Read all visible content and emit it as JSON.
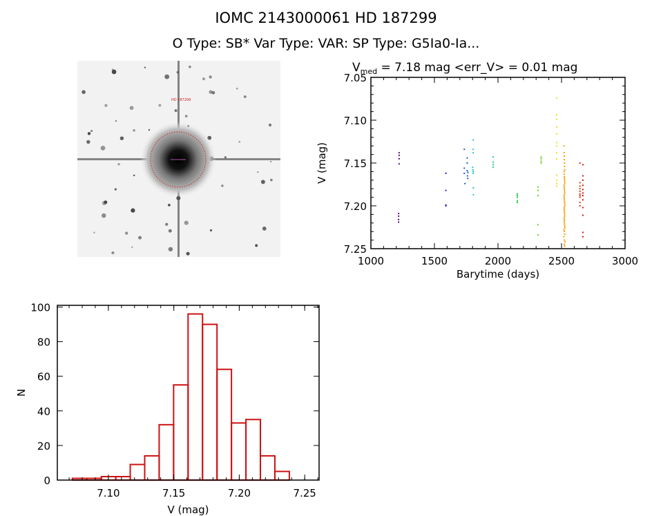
{
  "header": {
    "title": "IOMC 2143000061    HD 187299",
    "subtitle": "O Type: SB*  Var Type: VAR:  SP Type: G5Ia0-Ia..."
  },
  "image_panel": {
    "target_label": "HD 187299",
    "marker_color": "#cc2222"
  },
  "chart_data": [
    {
      "type": "scatter",
      "title_prefix": "V",
      "title_sub": "med",
      "title_rest": " = 7.18 mag <err_V> = 0.01 mag",
      "xlabel": "Barytime (days)",
      "ylabel": "V (mag)",
      "xlim": [
        1000,
        3000
      ],
      "ylim": [
        7.25,
        7.05
      ],
      "y_inverted": true,
      "xticks": [
        "1000",
        "1500",
        "2000",
        "2500",
        "3000"
      ],
      "yticks": [
        "7.05",
        "7.10",
        "7.15",
        "7.20",
        "7.25"
      ],
      "series": [
        {
          "color": "#4b0a7a",
          "x": [
            1222,
            1222,
            1222,
            1222,
            1218,
            1218,
            1218,
            1218
          ],
          "y": [
            7.138,
            7.141,
            7.145,
            7.151,
            7.209,
            7.212,
            7.216,
            7.219
          ]
        },
        {
          "color": "#2a1ab0",
          "x": [
            1590,
            1590,
            1590,
            1590
          ],
          "y": [
            7.162,
            7.182,
            7.199,
            7.2
          ]
        },
        {
          "color": "#1a5ac8",
          "x": [
            1735,
            1735,
            1735,
            1758,
            1758,
            1758,
            1760,
            1762,
            1763,
            1740
          ],
          "y": [
            7.134,
            7.156,
            7.162,
            7.144,
            7.15,
            7.159,
            7.165,
            7.168,
            7.161,
            7.174
          ]
        },
        {
          "color": "#1ac8d0",
          "x": [
            1805,
            1805,
            1805,
            1800,
            1802,
            1805,
            1805,
            1806,
            1806
          ],
          "y": [
            7.123,
            7.134,
            7.138,
            7.155,
            7.158,
            7.16,
            7.162,
            7.179,
            7.187
          ]
        },
        {
          "color": "#20c8a0",
          "x": [
            1962,
            1962,
            1962,
            1962
          ],
          "y": [
            7.143,
            7.149,
            7.152,
            7.155
          ]
        },
        {
          "color": "#22cc44",
          "x": [
            2152,
            2152,
            2152,
            2152,
            2152
          ],
          "y": [
            7.186,
            7.188,
            7.19,
            7.194,
            7.196
          ]
        },
        {
          "color": "#66d622",
          "x": [
            2315,
            2315,
            2315,
            2315,
            2315,
            2340,
            2340,
            2340,
            2340
          ],
          "y": [
            7.178,
            7.182,
            7.188,
            7.222,
            7.234,
            7.143,
            7.145,
            7.148,
            7.15
          ]
        },
        {
          "color": "#f0e020",
          "x": [
            2462,
            2462,
            2462,
            2462,
            2462,
            2462,
            2462,
            2462,
            2462,
            2462,
            2462,
            2462,
            2462
          ],
          "y": [
            7.074,
            7.094,
            7.099,
            7.108,
            7.116,
            7.126,
            7.13,
            7.138,
            7.145,
            7.164,
            7.17,
            7.174,
            7.177
          ]
        },
        {
          "color": "#f5a000",
          "x": [
            2520,
            2520,
            2521,
            2522,
            2523,
            2524,
            2525,
            2520,
            2521,
            2522,
            2523,
            2524,
            2525,
            2526,
            2520,
            2521,
            2522,
            2523,
            2524,
            2525,
            2520,
            2521,
            2522,
            2523,
            2524,
            2525,
            2526,
            2520,
            2521,
            2522,
            2523,
            2524,
            2525,
            2520,
            2521,
            2522,
            2523,
            2524,
            2525,
            2526,
            2518,
            2522,
            2526,
            2519,
            2523,
            2527,
            2521,
            2524
          ],
          "y": [
            7.13,
            7.138,
            7.142,
            7.146,
            7.15,
            7.154,
            7.158,
            7.16,
            7.163,
            7.166,
            7.168,
            7.17,
            7.172,
            7.174,
            7.176,
            7.178,
            7.18,
            7.182,
            7.184,
            7.186,
            7.188,
            7.19,
            7.192,
            7.194,
            7.196,
            7.198,
            7.2,
            7.202,
            7.204,
            7.206,
            7.208,
            7.21,
            7.212,
            7.214,
            7.216,
            7.218,
            7.22,
            7.222,
            7.224,
            7.226,
            7.228,
            7.23,
            7.233,
            7.236,
            7.24,
            7.242,
            7.245,
            7.247
          ]
        },
        {
          "color": "#d83c10",
          "x": [
            2645,
            2645,
            2645,
            2645,
            2645,
            2645,
            2645,
            2645,
            2645,
            2645
          ],
          "y": [
            7.15,
            7.173,
            7.177,
            7.18,
            7.183,
            7.186,
            7.188,
            7.19,
            7.196,
            7.2
          ]
        },
        {
          "color": "#d01010",
          "x": [
            2668,
            2668,
            2668,
            2668,
            2668,
            2668,
            2668,
            2668,
            2668,
            2668,
            2668,
            2668
          ],
          "y": [
            7.152,
            7.165,
            7.17,
            7.176,
            7.181,
            7.185,
            7.188,
            7.193,
            7.202,
            7.211,
            7.231,
            7.236
          ]
        }
      ]
    },
    {
      "type": "bar",
      "xlabel": "V (mag)",
      "ylabel": "N",
      "xlim": [
        7.061,
        7.261
      ],
      "ylim": [
        0,
        101
      ],
      "xticks": [
        "7.10",
        "7.15",
        "7.20",
        "7.25"
      ],
      "yticks": [
        "0",
        "20",
        "40",
        "60",
        "80",
        "100"
      ],
      "bin_start": 7.0725,
      "bin_width": 0.01105,
      "values": [
        1,
        1,
        2,
        2,
        9,
        14,
        32,
        55,
        96,
        90,
        64,
        33,
        35,
        14,
        5
      ],
      "color": "#cc1111"
    }
  ]
}
